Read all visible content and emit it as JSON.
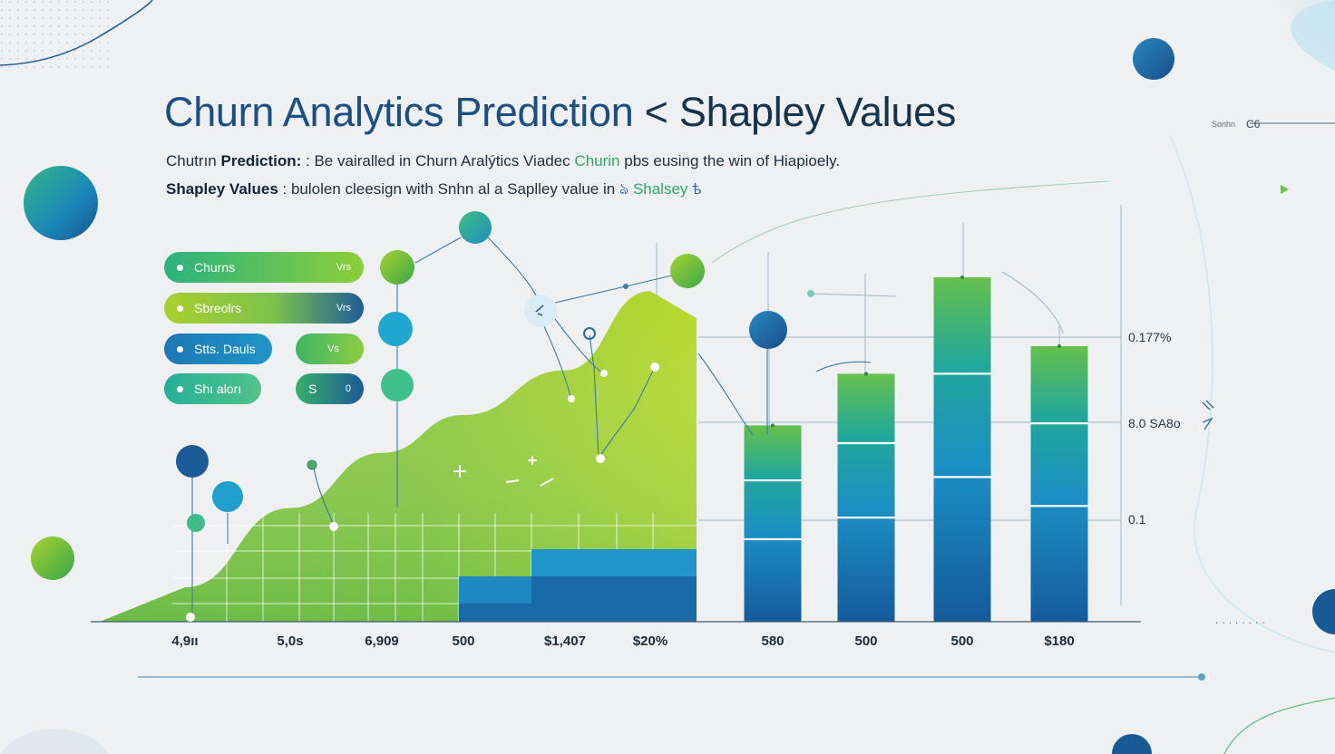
{
  "header": {
    "title_part1": "Churn Analytics Prediction",
    "title_part2": "< Shapley Values",
    "subtitle1": {
      "prefix": "Chutrın",
      "bold": "Prediction:",
      "text": ": Be vairalled in Churn Aralýtics Viadec",
      "highlight": "Churin",
      "suffix": "pbs eusing the win of Hiapioely."
    },
    "subtitle2": {
      "bold": "Shapley Values",
      "text": ": bulolen cleesign with Snhn al a Saplley value in",
      "glyph": "ঌ",
      "highlight": "Shalsey",
      "end": "ѣ"
    },
    "corner_label_small": "Sonhn",
    "corner_label": "C6"
  },
  "pills": [
    {
      "label": "Churns",
      "value": "Vrs"
    },
    {
      "label": "Sbreolrs",
      "value": "Vrs"
    },
    {
      "label": "Stts. Dauls",
      "value": ""
    },
    {
      "label": "",
      "value": "Vs"
    },
    {
      "label": "Shı alorı",
      "value": ""
    },
    {
      "label": "S",
      "value": "0"
    }
  ],
  "chart_data": {
    "type": "bar",
    "title": "Churn Analytics Prediction < Shapley Values",
    "categories": [
      "4,9ıı",
      "5,0s",
      "6,909",
      "500",
      "$1,407",
      "$20%",
      "580",
      "500",
      "500",
      "$180"
    ],
    "area_series": {
      "x_index": [
        0,
        1,
        2,
        3,
        4,
        5
      ],
      "values": [
        0.1,
        0.33,
        0.49,
        0.6,
        0.73,
        0.96
      ]
    },
    "bar_series": {
      "x_index": [
        6,
        7,
        8,
        9
      ],
      "values": [
        0.57,
        0.72,
        1.0,
        0.8
      ]
    },
    "y_tick_labels": [
      "0.177%",
      "8.0 SA8o",
      "0.1"
    ],
    "ylim": [
      0,
      1
    ],
    "grid": true,
    "legend": "left"
  },
  "colors": {
    "title_primary": "#1a4f86",
    "title_secondary": "#15334f",
    "green": "#8bc53f",
    "teal": "#2aa98c",
    "blue": "#1b5f9c",
    "light_blue": "#2a9fd0"
  }
}
